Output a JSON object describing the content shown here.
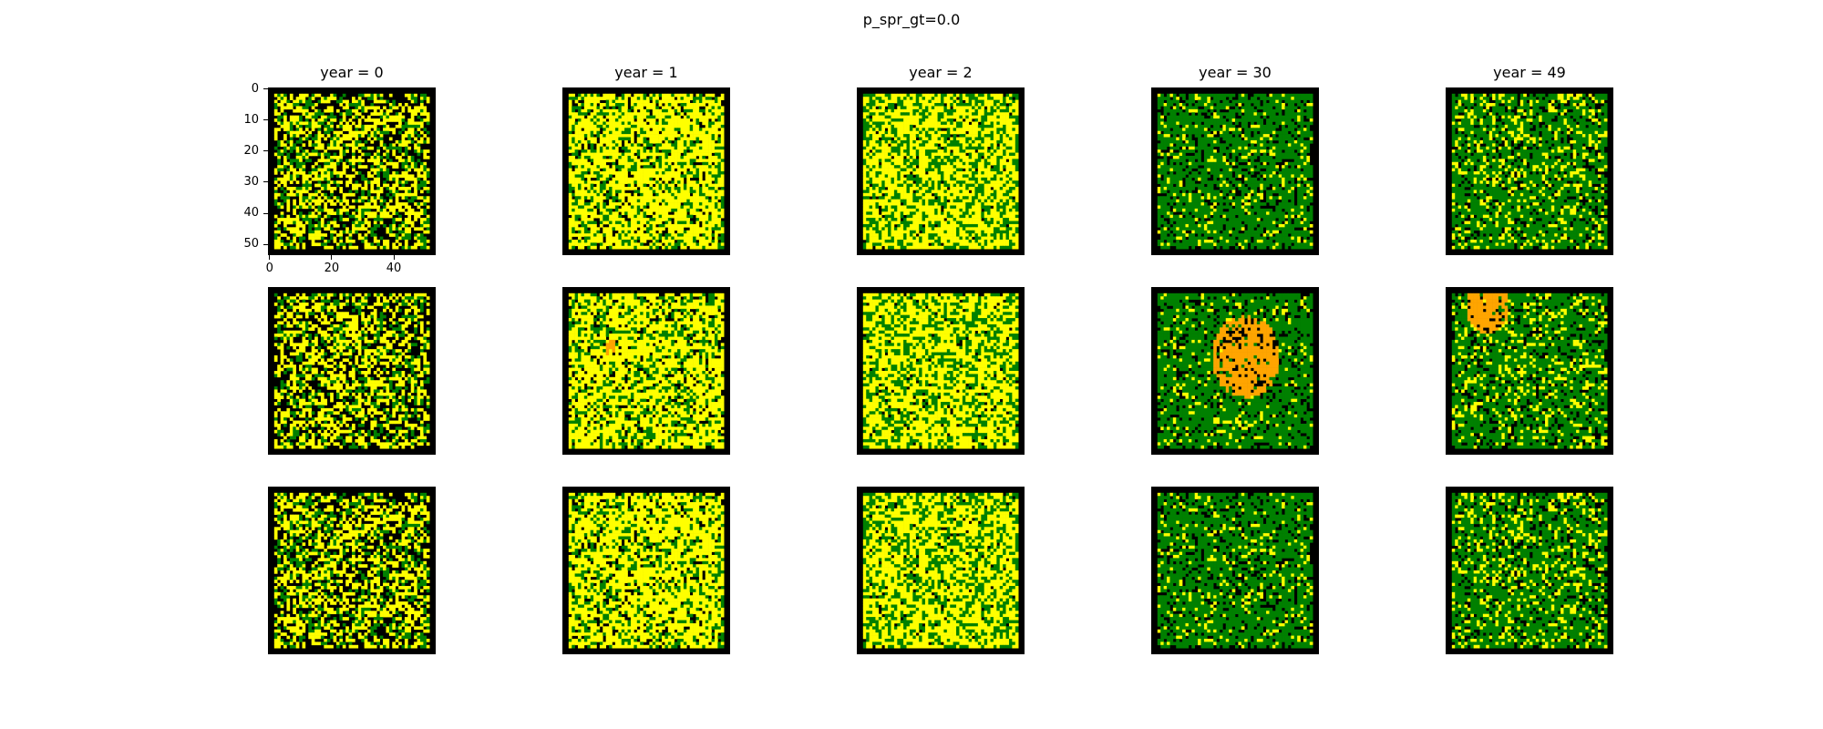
{
  "figure": {
    "suptitle": "p_spr_gt=0.0"
  },
  "chart_data": {
    "type": "heatmap",
    "title": "p_spr_gt=0.0",
    "grid_rows": 3,
    "grid_cols": 5,
    "columns": [
      {
        "title": "year = 0"
      },
      {
        "title": "year = 1"
      },
      {
        "title": "year = 2"
      },
      {
        "title": "year = 30"
      },
      {
        "title": "year = 49"
      }
    ],
    "image_size": [
      54,
      54
    ],
    "axes": {
      "shown_on": "top-left panel only",
      "x_ticks": [
        "0",
        "20",
        "40"
      ],
      "y_ticks": [
        "0",
        "10",
        "20",
        "30",
        "40",
        "50"
      ],
      "xlim": [
        -0.5,
        53.5
      ],
      "ylim": [
        53.5,
        -0.5
      ]
    },
    "grid": false,
    "colors": {
      "empty": "#000000",
      "grass": "#ffff00",
      "forest": "#008000",
      "burning": "#ffa500"
    },
    "category_fractions": [
      [
        {
          "empty": 0.4,
          "grass": 0.4,
          "forest": 0.2,
          "burning": 0.0
        },
        {
          "empty": 0.12,
          "grass": 0.63,
          "forest": 0.25,
          "burning": 0.0
        },
        {
          "empty": 0.04,
          "grass": 0.6,
          "forest": 0.36,
          "burning": 0.0
        },
        {
          "empty": 0.2,
          "grass": 0.12,
          "forest": 0.68,
          "burning": 0.0
        },
        {
          "empty": 0.18,
          "grass": 0.2,
          "forest": 0.62,
          "burning": 0.0
        }
      ],
      [
        {
          "empty": 0.4,
          "grass": 0.4,
          "forest": 0.2,
          "burning": 0.0
        },
        {
          "empty": 0.12,
          "grass": 0.62,
          "forest": 0.25,
          "burning": 0.01
        },
        {
          "empty": 0.04,
          "grass": 0.6,
          "forest": 0.36,
          "burning": 0.0
        },
        {
          "empty": 0.17,
          "grass": 0.1,
          "forest": 0.45,
          "burning": 0.28
        },
        {
          "empty": 0.17,
          "grass": 0.18,
          "forest": 0.55,
          "burning": 0.1
        }
      ],
      [
        {
          "empty": 0.4,
          "grass": 0.4,
          "forest": 0.2,
          "burning": 0.0
        },
        {
          "empty": 0.12,
          "grass": 0.63,
          "forest": 0.25,
          "burning": 0.0
        },
        {
          "empty": 0.04,
          "grass": 0.6,
          "forest": 0.36,
          "burning": 0.0
        },
        {
          "empty": 0.2,
          "grass": 0.12,
          "forest": 0.68,
          "burning": 0.0
        },
        {
          "empty": 0.18,
          "grass": 0.2,
          "forest": 0.62,
          "burning": 0.0
        }
      ]
    ]
  }
}
